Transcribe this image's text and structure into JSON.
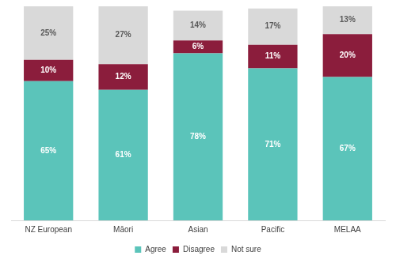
{
  "chart_data": {
    "type": "bar",
    "stacked": true,
    "data_labels": true,
    "legend": "bottom",
    "grid": false,
    "tick_labels": "x",
    "categories": [
      "NZ European",
      "Māori",
      "Asian",
      "Pacific",
      "MELAA"
    ],
    "ylim": [
      0,
      100
    ],
    "series": [
      {
        "name": "Agree",
        "color": "#5bc4ba",
        "values": [
          65,
          61,
          78,
          71,
          67
        ],
        "value_labels": [
          "65%",
          "61%",
          "78%",
          "71%",
          "67%"
        ]
      },
      {
        "name": "Disagree",
        "color": "#8b1d3c",
        "values": [
          10,
          12,
          6,
          11,
          20
        ],
        "value_labels": [
          "10%",
          "12%",
          "6%",
          "11%",
          "20%"
        ]
      },
      {
        "name": "Not sure",
        "color": "#d9d9d9",
        "values": [
          25,
          27,
          14,
          17,
          13
        ],
        "value_labels": [
          "25%",
          "27%",
          "14%",
          "17%",
          "13%"
        ]
      }
    ]
  }
}
